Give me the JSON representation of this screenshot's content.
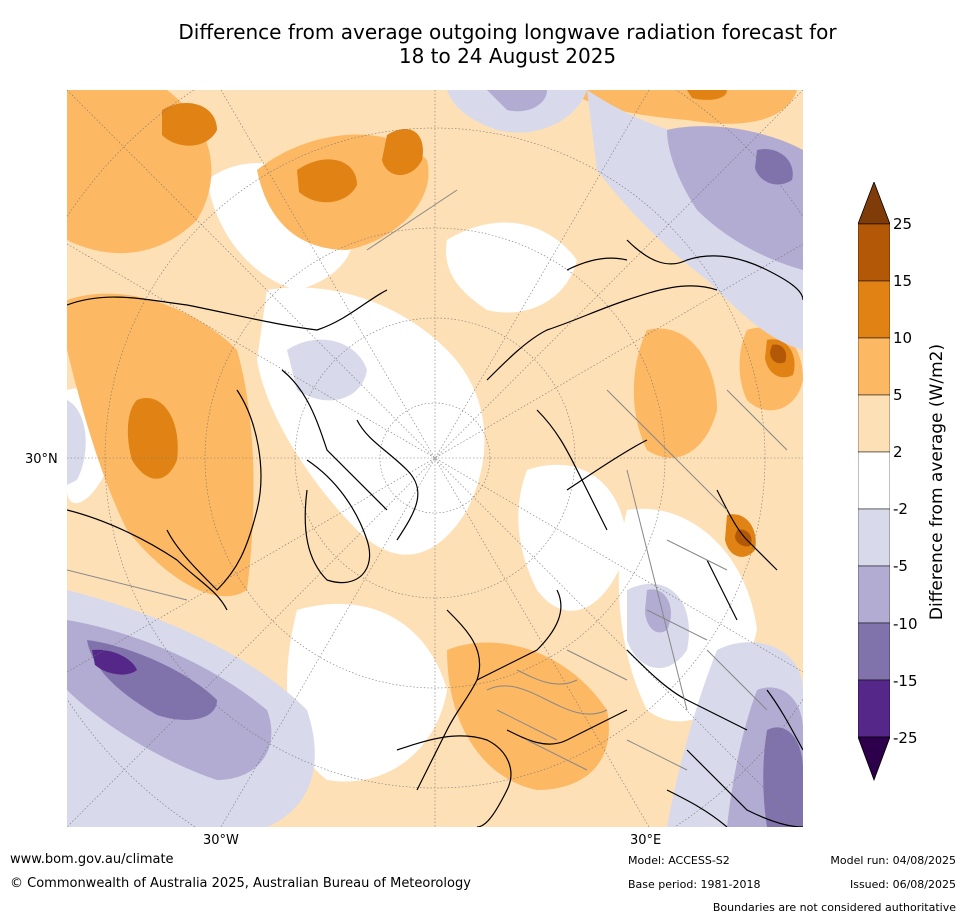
{
  "title": {
    "line1": "Difference from average outgoing longwave radiation forecast for",
    "line2": "18 to 24 August 2025"
  },
  "map": {
    "lat_label_left": "30°N",
    "lon_label_left": "30°W",
    "lon_label_right": "30°E"
  },
  "colorbar": {
    "label": "Difference from average (W/m2)",
    "ticks": [
      "25",
      "15",
      "10",
      "5",
      "2",
      "-2",
      "-5",
      "-10",
      "-15",
      "-25"
    ],
    "colors": {
      "over": "#7f3b08",
      "band_15_25": "#b35806",
      "band_10_15": "#e08214",
      "band_5_10": "#fdb863",
      "band_2_5": "#fee0b6",
      "band_neg2_2": "#ffffff",
      "band_neg5_neg2": "#d8daeb",
      "band_neg10_neg5": "#b2abd2",
      "band_neg15_neg10": "#8073ac",
      "band_neg25_neg15": "#542788",
      "under": "#2d004b"
    }
  },
  "footer": {
    "website": "www.bom.gov.au/climate",
    "copyright": "© Commonwealth of Australia 2025, Australian Bureau of Meteorology",
    "model": "Model: ACCESS-S2",
    "base_period": "Base period: 1981-2018",
    "model_run": "Model run: 04/08/2025",
    "issued": "Issued: 06/08/2025",
    "boundaries": "Boundaries are not considered authoritative"
  }
}
